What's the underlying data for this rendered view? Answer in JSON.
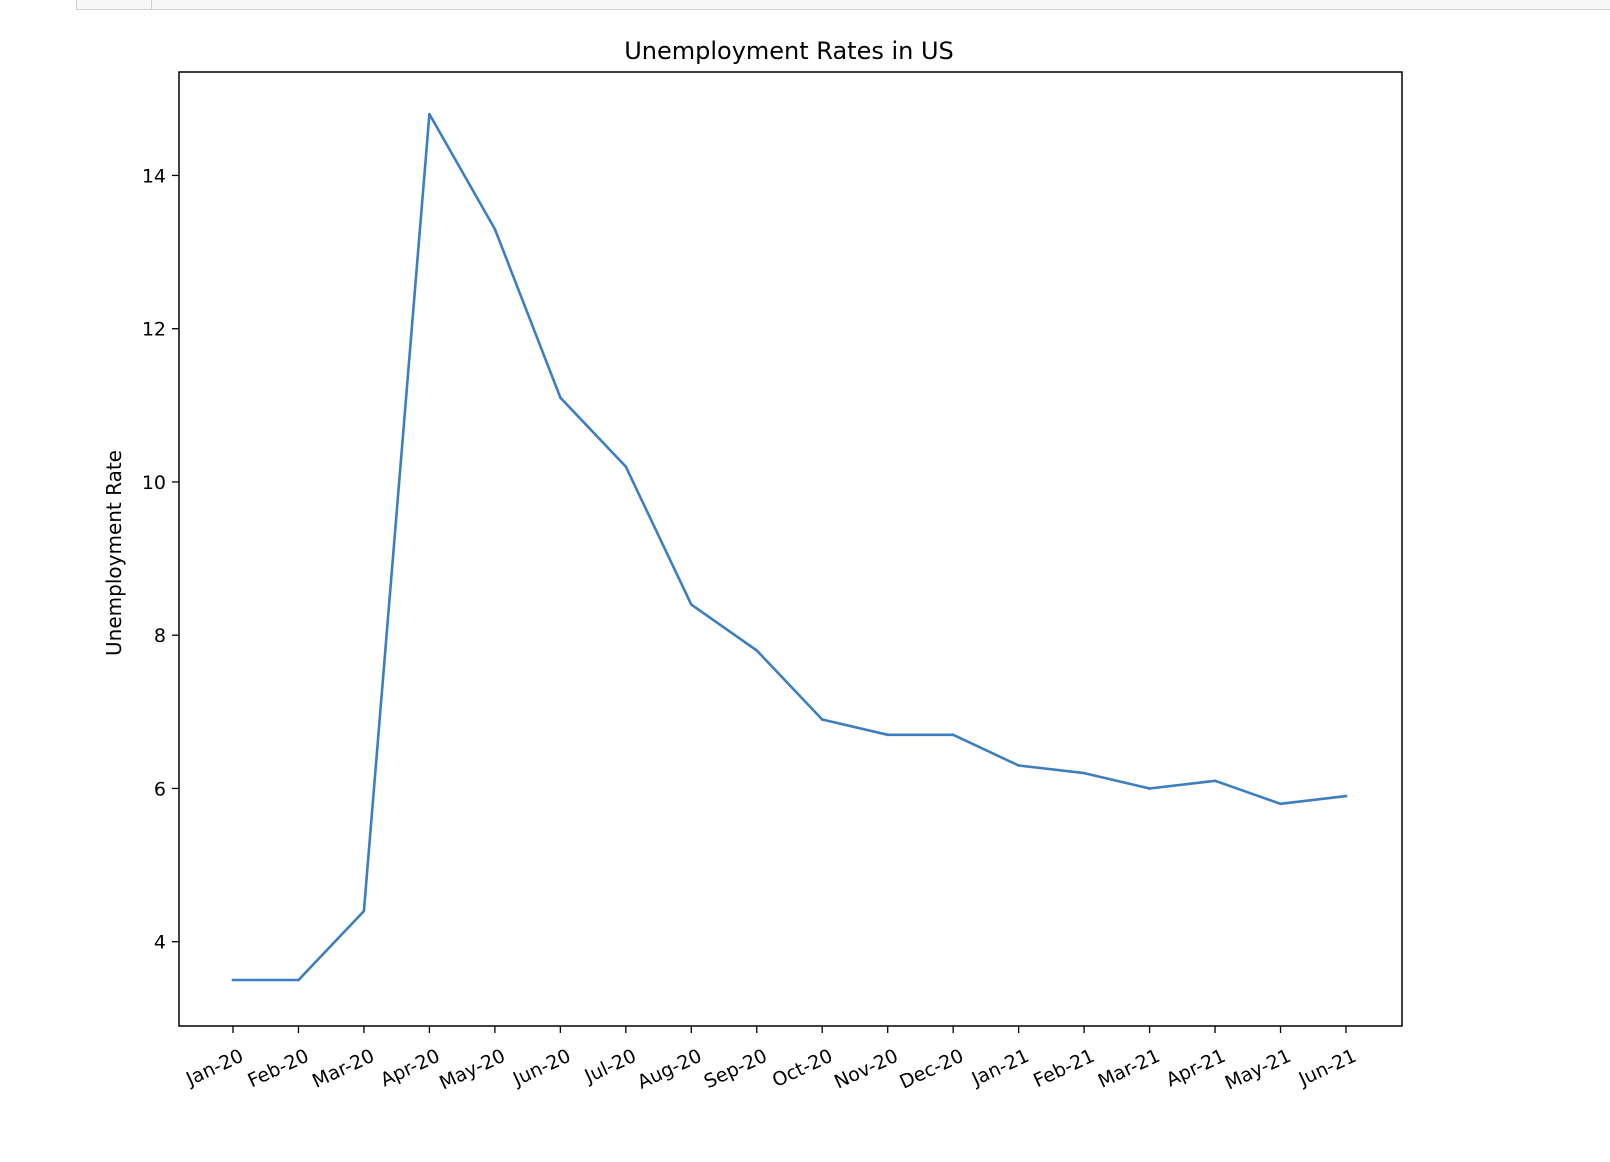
{
  "chart_data": {
    "type": "line",
    "title": "Unemployment Rates in US",
    "xlabel": "",
    "ylabel": "Unemployment Rate",
    "categories": [
      "Jan-20",
      "Feb-20",
      "Mar-20",
      "Apr-20",
      "May-20",
      "Jun-20",
      "Jul-20",
      "Aug-20",
      "Sep-20",
      "Oct-20",
      "Nov-20",
      "Dec-20",
      "Jan-21",
      "Feb-21",
      "Mar-21",
      "Apr-21",
      "May-21",
      "Jun-21"
    ],
    "series": [
      {
        "values": [
          3.5,
          3.5,
          4.4,
          14.8,
          13.3,
          11.1,
          10.2,
          8.4,
          7.8,
          6.9,
          6.7,
          6.7,
          6.3,
          6.2,
          6.0,
          6.1,
          5.8,
          5.9
        ]
      }
    ],
    "yticks": [
      4,
      6,
      8,
      10,
      12,
      14
    ],
    "ylim": [
      2.9,
      15.35
    ],
    "line_color": "#3d7ebf",
    "grid": false,
    "legend": false
  }
}
